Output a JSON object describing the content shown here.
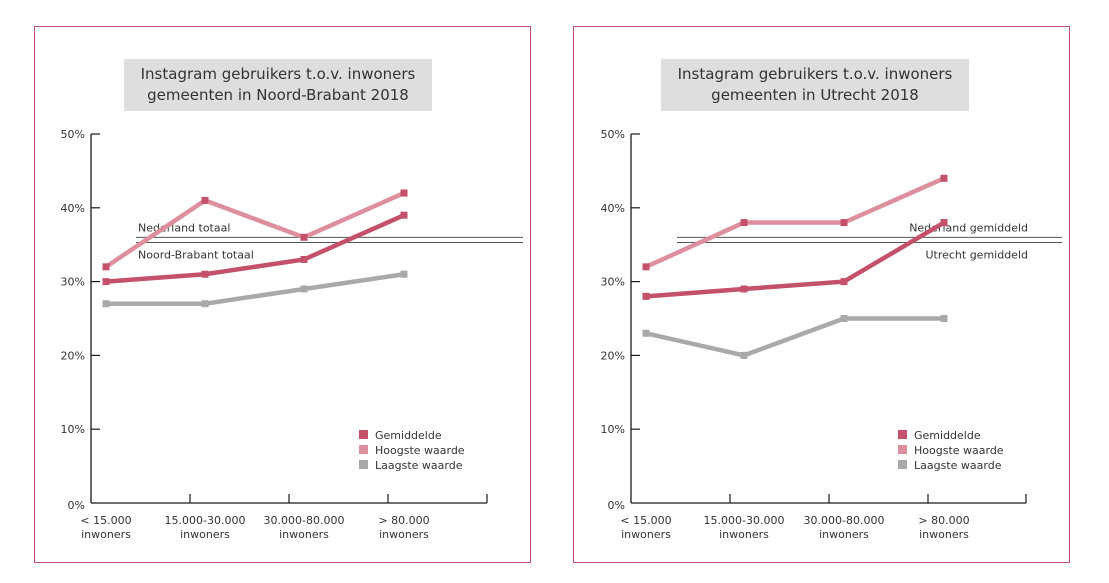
{
  "chart_data": [
    {
      "type": "line",
      "title": "Instagram gebruikers t.o.v. inwoners\ngemeenten in Noord-Brabant 2018",
      "title_lines": [
        "Instagram gebruikers t.o.v. inwoners",
        "gemeenten in Noord-Brabant 2018"
      ],
      "xlabel": "",
      "ylabel": "",
      "categories": [
        [
          "< 15.000",
          "inwoners"
        ],
        [
          "15.000-30.000",
          "inwoners"
        ],
        [
          "30.000-80.000",
          "inwoners"
        ],
        [
          "> 80.000",
          "inwoners"
        ]
      ],
      "ylim": [
        0,
        50
      ],
      "yticks": [
        0,
        10,
        20,
        30,
        40,
        50
      ],
      "ytick_labels": [
        "0%",
        "10%",
        "20%",
        "30%",
        "40%",
        "50%"
      ],
      "grid": false,
      "legend_position": "bottom-right",
      "series": [
        {
          "name": "Gemiddelde",
          "color": "#c4516a",
          "values": [
            30,
            31,
            33,
            39
          ]
        },
        {
          "name": "Hoogste waarde",
          "color": "#dd8f9e",
          "values": [
            32,
            41,
            36,
            42
          ]
        },
        {
          "name": "Laagste waarde",
          "color": "#a9a9ac",
          "values": [
            27,
            27,
            29,
            31
          ]
        }
      ],
      "reference_lines": [
        {
          "label": "Nederland totaal",
          "value": 36,
          "label_side": "above"
        },
        {
          "label": "Noord-Brabant totaal",
          "value": 35.3,
          "label_side": "below"
        }
      ]
    },
    {
      "type": "line",
      "title": "Instagram gebruikers t.o.v. inwoners\ngemeenten in Utrecht 2018",
      "title_lines": [
        "Instagram gebruikers t.o.v. inwoners",
        "gemeenten in Utrecht 2018"
      ],
      "xlabel": "",
      "ylabel": "",
      "categories": [
        [
          "< 15.000",
          "inwoners"
        ],
        [
          "15.000-30.000",
          "inwoners"
        ],
        [
          "30.000-80.000",
          "inwoners"
        ],
        [
          "> 80.000",
          "inwoners"
        ]
      ],
      "ylim": [
        0,
        50
      ],
      "yticks": [
        0,
        10,
        20,
        30,
        40,
        50
      ],
      "ytick_labels": [
        "0%",
        "10%",
        "20%",
        "30%",
        "40%",
        "50%"
      ],
      "grid": false,
      "legend_position": "bottom-right",
      "series": [
        {
          "name": "Gemiddelde",
          "color": "#c4516a",
          "values": [
            28,
            29,
            30,
            38
          ]
        },
        {
          "name": "Hoogste waarde",
          "color": "#dd8f9e",
          "values": [
            32,
            38,
            38,
            44
          ]
        },
        {
          "name": "Laagste waarde",
          "color": "#a9a9ac",
          "values": [
            23,
            20,
            25,
            25
          ]
        }
      ],
      "reference_lines": [
        {
          "label": "Nederland gemiddeld",
          "value": 36,
          "label_side": "above"
        },
        {
          "label": "Utrecht gemiddeld",
          "value": 35.3,
          "label_side": "below"
        }
      ]
    }
  ],
  "colors": {
    "frame": "#c4546e",
    "title_background": "#dedede",
    "reference_line": "#555555"
  }
}
